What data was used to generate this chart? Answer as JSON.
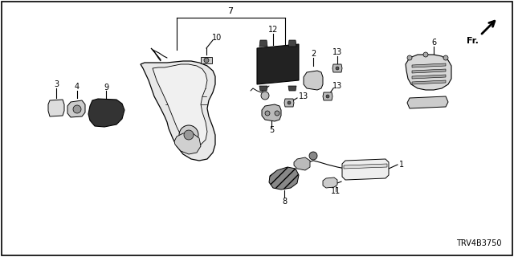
{
  "bg_color": "#ffffff",
  "line_color": "#000000",
  "gray_fill": "#d8d8d8",
  "dark_fill": "#555555",
  "mid_fill": "#aaaaaa",
  "part_code": "TRV4B3750",
  "figsize": [
    6.4,
    3.2
  ],
  "dpi": 100,
  "xlim": [
    0,
    640
  ],
  "ylim": [
    0,
    320
  ]
}
